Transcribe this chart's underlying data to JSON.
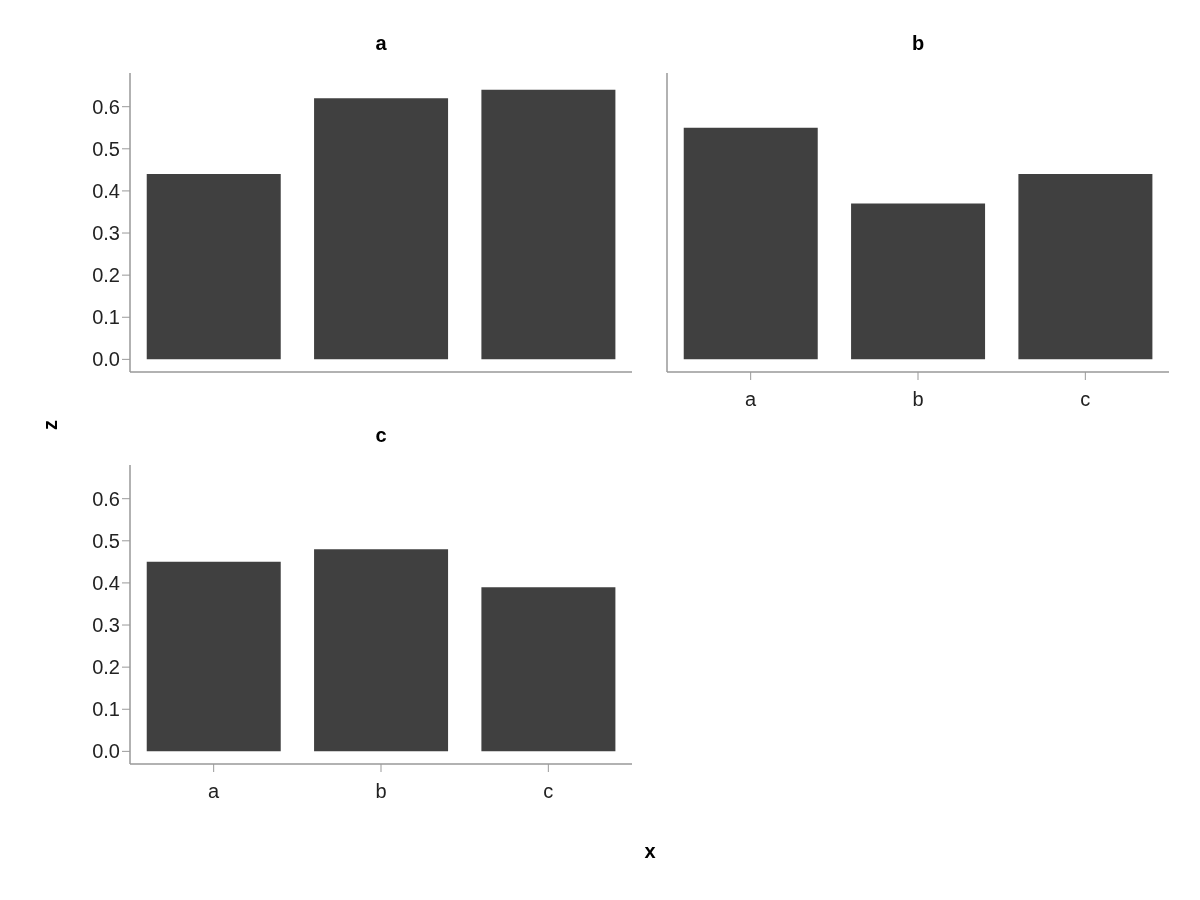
{
  "chart_data": [
    {
      "type": "bar",
      "title": "a",
      "xlabel": "x",
      "ylabel": "z",
      "categories": [
        null,
        null,
        null
      ],
      "values": [
        0.44,
        0.62,
        0.64
      ],
      "color": "#404040",
      "ylim": [
        -0.03,
        0.68
      ],
      "yticks": [
        {
          "value": 0,
          "label": "0.0"
        },
        0.1,
        0.2,
        0.3,
        0.4,
        0.5,
        0.6
      ],
      "grid": false,
      "legend": false,
      "tick_labels": "y"
    },
    {
      "type": "bar",
      "title": "b",
      "categories": [
        "a",
        "b",
        "c"
      ],
      "values": [
        0.55,
        0.37,
        0.44
      ],
      "color": "#404040",
      "ylim": [
        -0.03,
        0.68
      ],
      "grid": false,
      "legend": false,
      "tick_labels": "x"
    },
    {
      "type": "bar",
      "title": "c",
      "categories": [
        "a",
        "b",
        "c"
      ],
      "values": [
        0.45,
        0.48,
        0.39
      ],
      "color": "#404040",
      "ylim": [
        -0.03,
        0.68
      ],
      "yticks": [
        {
          "value": 0,
          "label": "0.0"
        },
        0.1,
        0.2,
        0.3,
        0.4,
        0.5,
        0.6
      ],
      "grid": false,
      "legend": false
    }
  ]
}
